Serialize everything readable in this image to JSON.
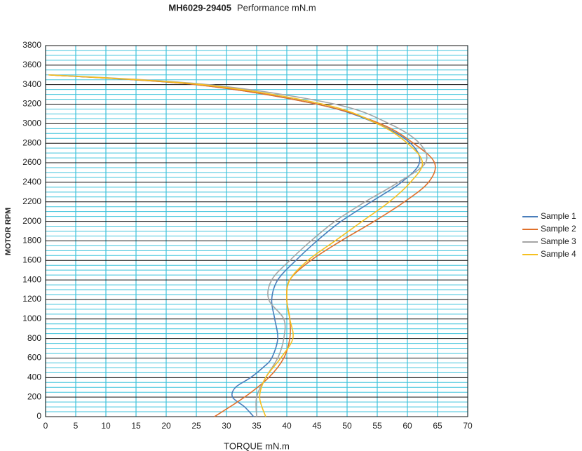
{
  "chart_data": {
    "type": "line",
    "title": "MH6029-29405",
    "subtitle": "Performance mN.m",
    "x_label": "TORQUE mN.m",
    "y_label": "MOTOR RPM",
    "xlim": [
      0,
      70
    ],
    "xticks": [
      0,
      5,
      10,
      15,
      20,
      25,
      30,
      35,
      40,
      45,
      50,
      55,
      60,
      65,
      70
    ],
    "ylim": [
      0,
      3800
    ],
    "yticks": [
      0,
      200,
      400,
      600,
      800,
      1000,
      1200,
      1400,
      1600,
      1800,
      2000,
      2200,
      2400,
      2600,
      2800,
      3000,
      3200,
      3400,
      3600,
      3800
    ],
    "grid": true,
    "minor_grid_divisions": 4,
    "legend": "right",
    "series": [
      {
        "name": "Sample 1",
        "color": "#4a7ebb",
        "x": [
          34.5,
          33,
          31,
          31.5,
          34,
          36,
          37.5,
          38.5,
          38,
          37.5,
          38.5,
          41.5,
          45,
          49,
          54,
          59,
          62,
          60.5,
          55,
          45,
          25,
          0.5
        ],
        "values": [
          0,
          100,
          200,
          300,
          400,
          500,
          600,
          800,
          1000,
          1200,
          1400,
          1600,
          1800,
          2000,
          2200,
          2400,
          2600,
          2800,
          3000,
          3200,
          3400,
          3500
        ]
      },
      {
        "name": "Sample 2",
        "color": "#e0702a",
        "x": [
          28,
          33,
          37,
          39.5,
          40.5,
          40.5,
          40,
          40.5,
          44,
          49,
          54.5,
          59.5,
          63.5,
          64.5,
          61,
          55.5,
          45,
          25,
          0.5
        ],
        "values": [
          0,
          200,
          400,
          600,
          800,
          1000,
          1200,
          1400,
          1600,
          1800,
          2000,
          2200,
          2400,
          2600,
          2800,
          3000,
          3200,
          3400,
          3500
        ]
      },
      {
        "name": "Sample 3",
        "color": "#a5a5a5",
        "x": [
          35,
          35,
          36.5,
          38.5,
          39.5,
          39.5,
          37,
          37.5,
          40.5,
          44,
          48,
          53,
          58.5,
          63,
          62,
          57,
          48,
          27,
          1
        ],
        "values": [
          0,
          200,
          400,
          600,
          800,
          1000,
          1200,
          1400,
          1600,
          1800,
          2000,
          2200,
          2400,
          2600,
          2800,
          3000,
          3200,
          3400,
          3500
        ]
      },
      {
        "name": "Sample 4",
        "color": "#f5c020",
        "x": [
          36.5,
          35.5,
          36.5,
          39,
          41,
          40.5,
          40,
          40.5,
          43.5,
          48,
          52.5,
          57,
          60.5,
          62.5,
          60,
          55,
          46,
          26,
          0.5
        ],
        "values": [
          0,
          200,
          400,
          600,
          800,
          1000,
          1200,
          1400,
          1600,
          1800,
          2000,
          2200,
          2400,
          2600,
          2800,
          3000,
          3200,
          3400,
          3500
        ]
      }
    ]
  }
}
